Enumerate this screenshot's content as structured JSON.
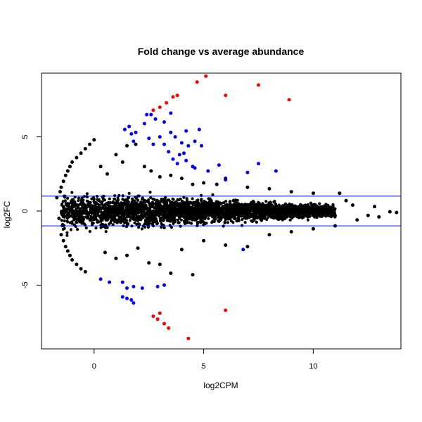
{
  "chart_data": {
    "type": "scatter",
    "title": "Fold change vs average abundance",
    "xlabel": "log2CPM",
    "ylabel": "log2FC",
    "xlim": [
      -2.4,
      14.0
    ],
    "ylim": [
      -9.3,
      9.3
    ],
    "xticks": [
      0,
      5,
      10
    ],
    "yticks": [
      -5,
      0,
      5
    ],
    "grid": false,
    "legend": "none",
    "threshold_lines": [
      1,
      -1
    ],
    "colors": {
      "not_significant": "#000000",
      "significant": "#0000ff",
      "highly_significant": "#ff0000",
      "threshold_line": "#0000ff"
    },
    "series": [
      {
        "color": "#000000",
        "points": [
          [
            -1.7,
            0.9
          ],
          [
            -1.6,
            -0.5
          ],
          [
            -1.55,
            1.3
          ],
          [
            -1.5,
            1.6
          ],
          [
            -1.4,
            2.0
          ],
          [
            -1.3,
            2.4
          ],
          [
            -1.2,
            2.7
          ],
          [
            -1.1,
            3.0
          ],
          [
            -1.0,
            3.3
          ],
          [
            -0.8,
            3.6
          ],
          [
            -0.6,
            3.9
          ],
          [
            -0.4,
            4.2
          ],
          [
            -0.2,
            4.5
          ],
          [
            0.0,
            4.8
          ],
          [
            -1.5,
            -1.6
          ],
          [
            -1.4,
            -2.0
          ],
          [
            -1.3,
            -2.4
          ],
          [
            -1.2,
            -2.7
          ],
          [
            -1.1,
            -3.0
          ],
          [
            -1.0,
            -3.3
          ],
          [
            -0.8,
            -3.6
          ],
          [
            -0.6,
            -3.9
          ],
          [
            -0.4,
            -4.1
          ],
          [
            0.3,
            3.0
          ],
          [
            0.6,
            2.5
          ],
          [
            1.0,
            3.8
          ],
          [
            1.3,
            3.3
          ],
          [
            1.5,
            4.4
          ],
          [
            1.9,
            4.5
          ],
          [
            2.3,
            3.0
          ],
          [
            2.6,
            2.7
          ],
          [
            3.0,
            2.3
          ],
          [
            3.5,
            2.4
          ],
          [
            4.0,
            2.2
          ],
          [
            4.5,
            1.8
          ],
          [
            5.0,
            1.9
          ],
          [
            5.6,
            1.8
          ],
          [
            6.0,
            2.2
          ],
          [
            7.0,
            1.6
          ],
          [
            8.0,
            1.5
          ],
          [
            9.0,
            1.3
          ],
          [
            10.0,
            1.2
          ],
          [
            11.2,
            1.2
          ],
          [
            11.5,
            0.7
          ],
          [
            0.5,
            -2.8
          ],
          [
            1.0,
            -3.2
          ],
          [
            1.5,
            -3.0
          ],
          [
            2.0,
            -2.5
          ],
          [
            2.5,
            -3.5
          ],
          [
            3.0,
            -3.6
          ],
          [
            3.5,
            -4.2
          ],
          [
            4.0,
            -2.6
          ],
          [
            4.5,
            -4.3
          ],
          [
            5.0,
            -2.0
          ],
          [
            6.0,
            -2.3
          ],
          [
            7.0,
            -2.4
          ],
          [
            8.0,
            -1.6
          ],
          [
            9.0,
            -1.4
          ],
          [
            10.0,
            -1.2
          ],
          [
            11.0,
            -1.0
          ],
          [
            12.0,
            -0.6
          ],
          [
            12.5,
            -0.3
          ],
          [
            13.0,
            -0.4
          ],
          [
            13.5,
            -0.05
          ],
          [
            13.8,
            -0.1
          ],
          [
            12.8,
            0.3
          ],
          [
            11.8,
            0.4
          ],
          [
            11.0,
            -0.3
          ]
        ]
      },
      {
        "color": "#0000ff",
        "points": [
          [
            1.4,
            5.5
          ],
          [
            1.6,
            5.7
          ],
          [
            1.7,
            5.2
          ],
          [
            1.9,
            5.3
          ],
          [
            1.8,
            4.7
          ],
          [
            2.3,
            5.9
          ],
          [
            2.6,
            6.5
          ],
          [
            2.8,
            6.2
          ],
          [
            2.5,
            4.9
          ],
          [
            2.7,
            4.5
          ],
          [
            3.0,
            5.0
          ],
          [
            3.2,
            4.5
          ],
          [
            3.5,
            5.3
          ],
          [
            3.7,
            5.0
          ],
          [
            3.4,
            4.0
          ],
          [
            3.6,
            3.5
          ],
          [
            3.9,
            3.8
          ],
          [
            4.1,
            3.9
          ],
          [
            4.3,
            4.4
          ],
          [
            4.0,
            4.6
          ],
          [
            4.2,
            5.4
          ],
          [
            4.6,
            4.7
          ],
          [
            4.8,
            5.5
          ],
          [
            4.9,
            4.4
          ],
          [
            3.8,
            3.2
          ],
          [
            4.2,
            3.4
          ],
          [
            4.5,
            3.0
          ],
          [
            5.2,
            2.7
          ],
          [
            5.7,
            3.1
          ],
          [
            6.0,
            2.1
          ],
          [
            7.0,
            2.6
          ],
          [
            7.5,
            3.2
          ],
          [
            8.3,
            2.7
          ],
          [
            4.6,
            2.9
          ],
          [
            3.2,
            6.0
          ],
          [
            3.5,
            6.6
          ],
          [
            2.4,
            6.5
          ],
          [
            0.3,
            -4.6
          ],
          [
            0.7,
            -4.8
          ],
          [
            1.3,
            -4.8
          ],
          [
            1.5,
            -5.2
          ],
          [
            1.8,
            -5.1
          ],
          [
            2.2,
            -5.2
          ],
          [
            2.9,
            -5.1
          ],
          [
            3.2,
            -5.0
          ],
          [
            1.3,
            -5.8
          ],
          [
            1.5,
            -5.9
          ],
          [
            1.7,
            -6.0
          ],
          [
            1.8,
            -6.2
          ],
          [
            6.8,
            -2.6
          ]
        ]
      },
      {
        "color": "#ff0000",
        "points": [
          [
            2.7,
            6.8
          ],
          [
            3.0,
            7.0
          ],
          [
            3.3,
            7.3
          ],
          [
            3.6,
            7.7
          ],
          [
            3.8,
            7.8
          ],
          [
            4.7,
            8.7
          ],
          [
            5.1,
            9.1
          ],
          [
            6.0,
            7.8
          ],
          [
            7.5,
            8.5
          ],
          [
            8.9,
            7.5
          ],
          [
            2.7,
            -7.1
          ],
          [
            2.9,
            -7.3
          ],
          [
            3.0,
            -6.9
          ],
          [
            3.2,
            -7.6
          ],
          [
            3.4,
            -7.9
          ],
          [
            4.3,
            -8.6
          ],
          [
            6.0,
            -6.7
          ]
        ]
      }
    ]
  }
}
